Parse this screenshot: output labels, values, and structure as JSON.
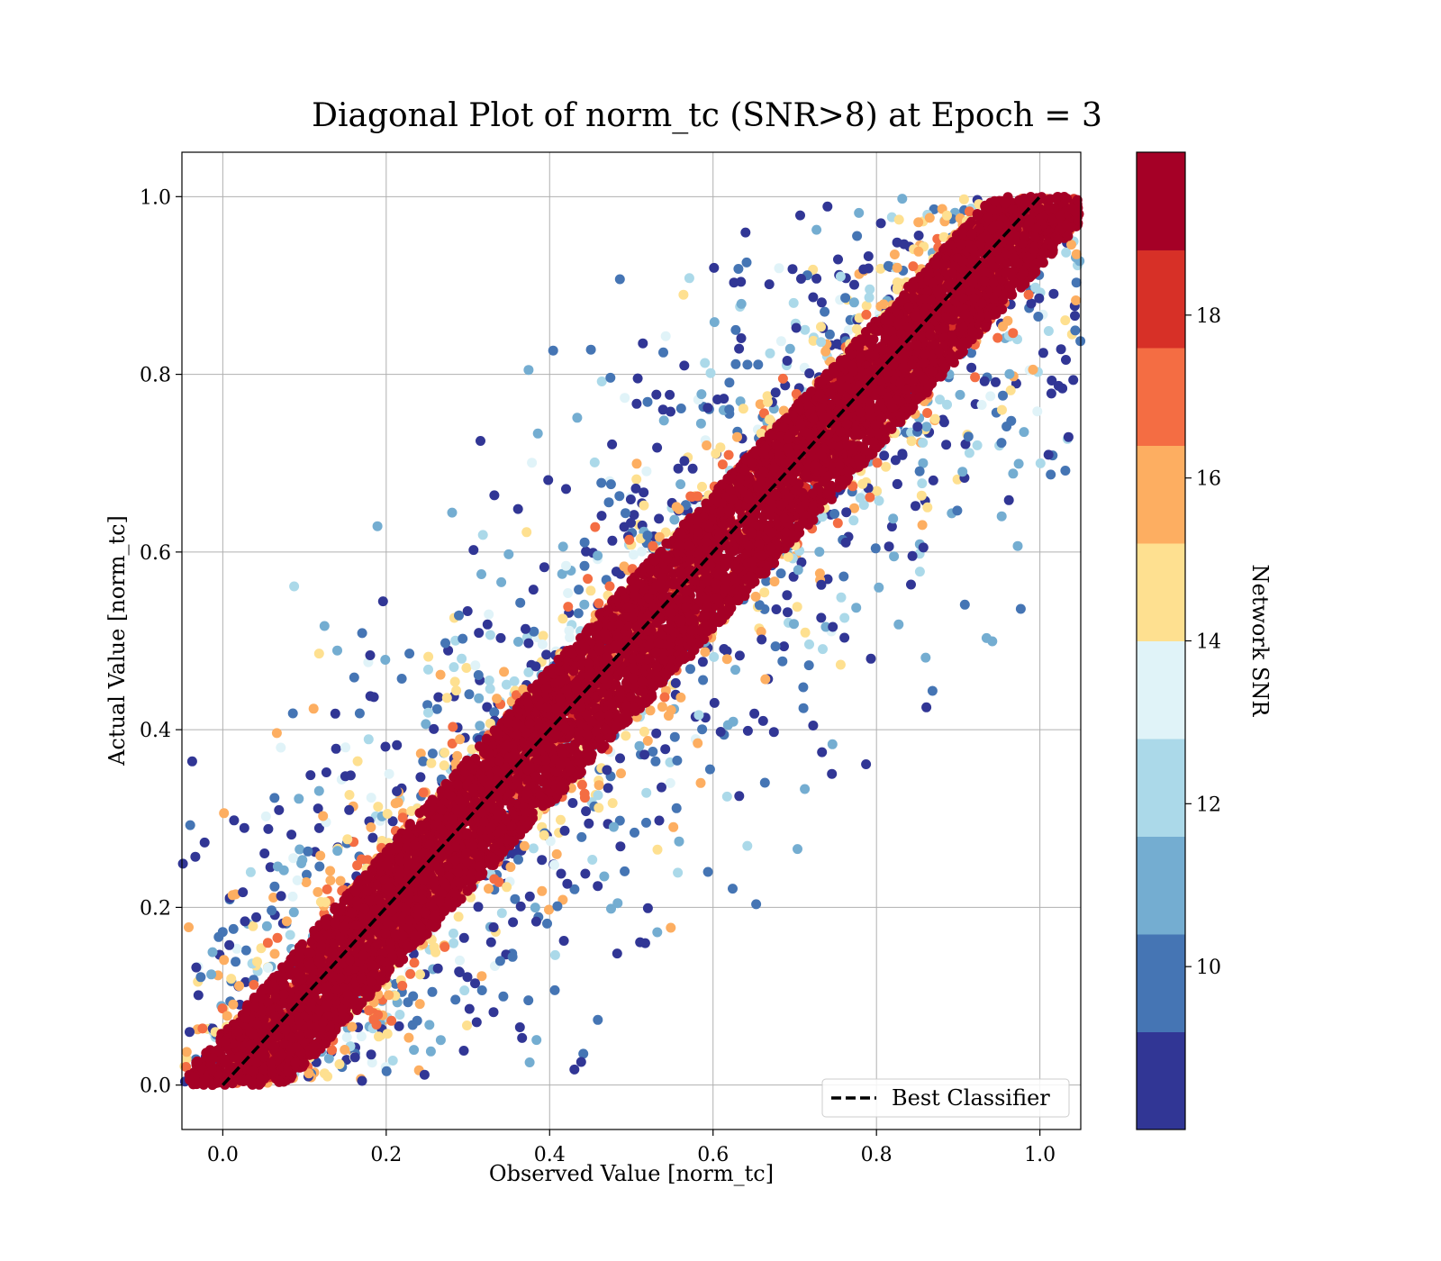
{
  "chart_data": {
    "type": "scatter",
    "title": "Diagonal Plot of norm_tc (SNR>8) at Epoch = 3",
    "xlabel": "Observed Value [norm_tc]",
    "ylabel": "Actual Value [norm_tc]",
    "xlim": [
      -0.05,
      1.05
    ],
    "ylim": [
      -0.05,
      1.05
    ],
    "xticks": [
      "0.0",
      "0.2",
      "0.4",
      "0.6",
      "0.8",
      "1.0"
    ],
    "yticks": [
      "0.0",
      "0.2",
      "0.4",
      "0.6",
      "0.8",
      "1.0"
    ],
    "xtick_values": [
      0,
      0.2,
      0.4,
      0.6,
      0.8,
      1.0
    ],
    "ytick_values": [
      0,
      0.2,
      0.4,
      0.6,
      0.8,
      1.0
    ],
    "grid": true,
    "legend": {
      "placement": "lower-right",
      "entries": [
        {
          "label": "Best Classifier",
          "style": "dashed",
          "color": "#000000"
        }
      ]
    },
    "reference_line": {
      "x": [
        0,
        1
      ],
      "y": [
        0,
        1
      ]
    },
    "colorbar": {
      "label": "Network SNR",
      "range": [
        8,
        20
      ],
      "ticks": [
        "10",
        "12",
        "14",
        "16",
        "18"
      ],
      "tick_values": [
        10,
        12,
        14,
        16,
        18
      ],
      "colors": [
        "#313695",
        "#4575b4",
        "#74add1",
        "#abd9e9",
        "#e0f3f8",
        "#fee090",
        "#fdae61",
        "#f46d43",
        "#d73027",
        "#a50026"
      ]
    },
    "distribution": {
      "relation": "actual ≈ observed",
      "core_band_width": 0.08,
      "outlier_spread": 0.3,
      "high_snr_dominant": true
    }
  }
}
